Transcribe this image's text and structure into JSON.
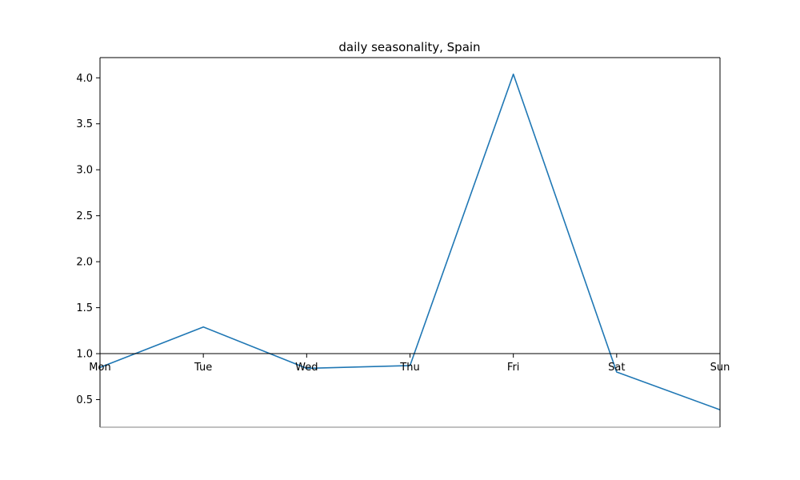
{
  "chart_data": {
    "type": "line",
    "title": "daily seasonality, Spain",
    "xlabel": "",
    "ylabel": "",
    "categories": [
      "Mon",
      "Tue",
      "Wed",
      "Thu",
      "Fri",
      "Sat",
      "Sun"
    ],
    "series": [
      {
        "values": [
          0.85,
          1.29,
          0.84,
          0.87,
          4.04,
          0.8,
          0.39
        ]
      }
    ],
    "ylim": [
      0.2,
      4.22
    ],
    "yticks": [
      "0.5",
      "1.0",
      "1.5",
      "2.0",
      "2.5",
      "3.0",
      "3.5",
      "4.0"
    ],
    "x_axis_at": 1.0,
    "grid": false,
    "line_color": "#1f77b4"
  }
}
